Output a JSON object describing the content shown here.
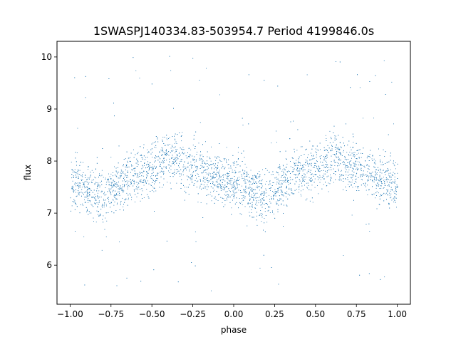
{
  "chart_data": {
    "type": "scatter",
    "title": "1SWASPJ140334.83-503954.7 Period 4199846.0s",
    "xlabel": "phase",
    "ylabel": "flux",
    "xlim": [
      -1.08,
      1.08
    ],
    "ylim": [
      5.25,
      10.3
    ],
    "x_ticks": [
      -1.0,
      -0.75,
      -0.5,
      -0.25,
      0.0,
      0.25,
      0.5,
      0.75,
      1.0
    ],
    "x_tick_labels": [
      "−1.00",
      "−0.75",
      "−0.50",
      "−0.25",
      "0.00",
      "0.25",
      "0.50",
      "0.75",
      "1.00"
    ],
    "y_ticks": [
      6,
      7,
      8,
      9,
      10
    ],
    "y_tick_labels": [
      "6",
      "7",
      "8",
      "9",
      "10"
    ],
    "grid": false,
    "marker_color": "#1f77b4",
    "series": [
      {
        "description_of_shape": "folded light curve repeated over two cycles",
        "phase_profile": [
          {
            "phase": 0.0,
            "flux_median": 7.55
          },
          {
            "phase": 0.05,
            "flux_median": 7.55
          },
          {
            "phase": 0.1,
            "flux_median": 7.45
          },
          {
            "phase": 0.15,
            "flux_median": 7.35
          },
          {
            "phase": 0.2,
            "flux_median": 7.3
          },
          {
            "phase": 0.25,
            "flux_median": 7.45
          },
          {
            "phase": 0.3,
            "flux_median": 7.55
          },
          {
            "phase": 0.35,
            "flux_median": 7.7
          },
          {
            "phase": 0.4,
            "flux_median": 7.75
          },
          {
            "phase": 0.45,
            "flux_median": 7.8
          },
          {
            "phase": 0.5,
            "flux_median": 7.85
          },
          {
            "phase": 0.55,
            "flux_median": 8.0
          },
          {
            "phase": 0.6,
            "flux_median": 8.1
          },
          {
            "phase": 0.65,
            "flux_median": 8.05
          },
          {
            "phase": 0.7,
            "flux_median": 7.9
          },
          {
            "phase": 0.75,
            "flux_median": 7.9
          },
          {
            "phase": 0.8,
            "flux_median": 7.85
          },
          {
            "phase": 0.85,
            "flux_median": 7.75
          },
          {
            "phase": 0.9,
            "flux_median": 7.7
          },
          {
            "phase": 0.95,
            "flux_median": 7.6
          },
          {
            "phase": 1.0,
            "flux_median": 7.55
          }
        ],
        "scatter_halfwidth": 0.45,
        "outlier_extent": [
          5.5,
          10.05
        ]
      }
    ]
  }
}
